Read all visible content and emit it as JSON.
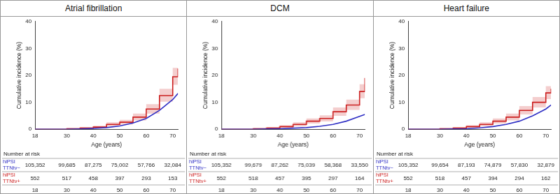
{
  "chart_data": [
    {
      "type": "line",
      "title": "Atrial fibrillation",
      "x_label": "Age (years)",
      "y_label": "Cumulative incidence (%)",
      "x": [
        18,
        25,
        30,
        35,
        40,
        45,
        50,
        55,
        60,
        65,
        70,
        72
      ],
      "xlim": [
        18,
        72
      ],
      "xticks": [
        18,
        30,
        40,
        50,
        60,
        70
      ],
      "ylim": [
        0,
        40
      ],
      "yticks": [
        0,
        10,
        20,
        30,
        40
      ],
      "grid": false,
      "at_risk_title": "Number at risk",
      "series": [
        {
          "name": "hiPSI TTNtv−",
          "color": "#2f2fc4",
          "line_style": "solid",
          "values": [
            0,
            0,
            0,
            0.1,
            0.3,
            0.6,
            1.2,
            2.3,
            4.0,
            7.0,
            11.0,
            13.3
          ],
          "at_risk": [
            105352,
            99685,
            87275,
            75002,
            57766,
            32084
          ]
        },
        {
          "name": "hiPSI TTNtv+",
          "color": "#cc1f1f",
          "line_style": "step",
          "values": [
            0,
            0,
            0.2,
            0.4,
            0.8,
            1.8,
            2.6,
            4.5,
            7.5,
            12.5,
            19.5,
            22.5
          ],
          "ci_lower": [
            0,
            0,
            0,
            0.1,
            0.4,
            1.1,
            1.8,
            3.3,
            5.8,
            10.2,
            16.5,
            19.2
          ],
          "ci_upper": [
            0,
            0,
            0.5,
            0.8,
            1.3,
            2.6,
            3.5,
            5.8,
            9.3,
            15.0,
            22.8,
            26.0
          ],
          "at_risk": [
            552,
            517,
            458,
            397,
            293,
            153
          ]
        }
      ]
    },
    {
      "type": "line",
      "title": "DCM",
      "x_label": "Age (years)",
      "y_label": "Cumulative incidence (%)",
      "x": [
        18,
        25,
        30,
        35,
        40,
        45,
        50,
        55,
        60,
        65,
        70,
        72
      ],
      "xlim": [
        18,
        72
      ],
      "xticks": [
        18,
        30,
        40,
        50,
        60,
        70
      ],
      "ylim": [
        0,
        40
      ],
      "yticks": [
        0,
        10,
        20,
        30,
        40
      ],
      "grid": false,
      "at_risk_title": "Number at risk",
      "series": [
        {
          "name": "hiPSI TTNtv−",
          "color": "#2f2fc4",
          "line_style": "solid",
          "values": [
            0,
            0,
            0,
            0.1,
            0.2,
            0.4,
            0.6,
            1.1,
            1.8,
            3.0,
            4.8,
            5.5
          ],
          "at_risk": [
            105352,
            99679,
            87262,
            75039,
            58368,
            33550
          ]
        },
        {
          "name": "hiPSI TTNtv+",
          "color": "#cc1f1f",
          "line_style": "step",
          "values": [
            0,
            0,
            0.2,
            0.4,
            1.0,
            1.8,
            3.0,
            4.0,
            6.5,
            9.0,
            14.0,
            19.0
          ],
          "ci_lower": [
            0,
            0,
            0,
            0.1,
            0.5,
            1.1,
            2.1,
            2.9,
            5.0,
            7.2,
            11.5,
            15.8
          ],
          "ci_upper": [
            0,
            0,
            0.5,
            0.8,
            1.5,
            2.6,
            4.0,
            5.2,
            8.1,
            11.0,
            16.7,
            22.5
          ],
          "at_risk": [
            552,
            518,
            457,
            395,
            297,
            164
          ]
        }
      ]
    },
    {
      "type": "line",
      "title": "Heart failure",
      "x_label": "Age (years)",
      "y_label": "Cumulative incidence (%)",
      "x": [
        18,
        25,
        30,
        35,
        40,
        45,
        50,
        55,
        60,
        65,
        70,
        72
      ],
      "xlim": [
        18,
        72
      ],
      "xticks": [
        18,
        30,
        40,
        50,
        60,
        70
      ],
      "ylim": [
        0,
        40
      ],
      "yticks": [
        0,
        10,
        20,
        30,
        40
      ],
      "grid": false,
      "at_risk_title": "Number at risk",
      "series": [
        {
          "name": "hiPSI TTNtv−",
          "color": "#2f2fc4",
          "line_style": "solid",
          "values": [
            0,
            0,
            0,
            0.1,
            0.2,
            0.5,
            1.0,
            1.8,
            3.0,
            5.0,
            7.5,
            9.0
          ],
          "at_risk": [
            105352,
            99654,
            87193,
            74879,
            57830,
            32879
          ]
        },
        {
          "name": "hiPSI TTNtv+",
          "color": "#cc1f1f",
          "line_style": "step",
          "values": [
            0,
            0,
            0.2,
            0.4,
            1.0,
            1.8,
            3.0,
            4.5,
            7.0,
            10.0,
            13.5,
            15.0
          ],
          "ci_lower": [
            0,
            0,
            0,
            0.1,
            0.5,
            1.1,
            2.1,
            3.3,
            5.5,
            8.1,
            11.2,
            12.5
          ],
          "ci_upper": [
            0,
            0,
            0.5,
            0.8,
            1.5,
            2.6,
            4.0,
            5.8,
            8.6,
            12.0,
            16.0,
            17.7
          ],
          "at_risk": [
            552,
            518,
            457,
            394,
            294,
            162
          ]
        }
      ]
    }
  ]
}
